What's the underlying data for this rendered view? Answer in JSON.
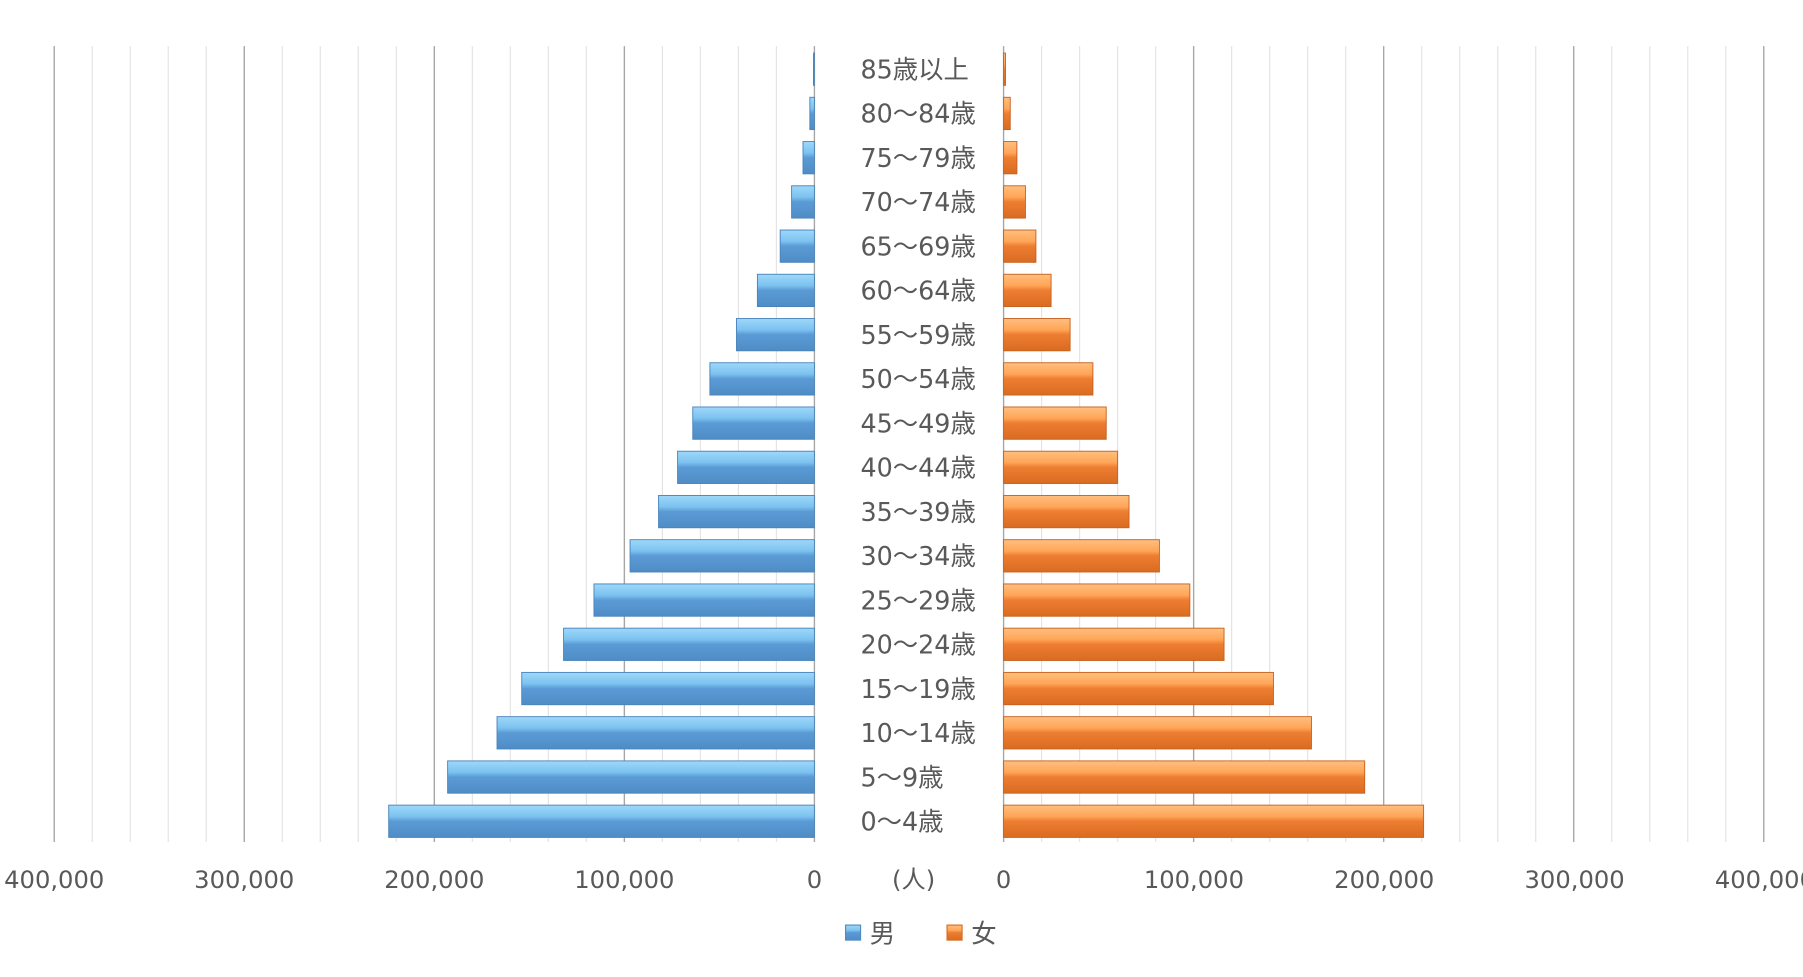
{
  "chart_data": {
    "type": "bar",
    "orientation": "horizontal-population-pyramid",
    "categories": [
      "85歳以上",
      "80～84歳",
      "75～79歳",
      "70～74歳",
      "65～69歳",
      "60～64歳",
      "55～59歳",
      "50～54歳",
      "45～49歳",
      "40～44歳",
      "35～39歳",
      "30～34歳",
      "25～29歳",
      "20～24歳",
      "15～19歳",
      "10～14歳",
      "5～9歳",
      "0～4歳"
    ],
    "series": [
      {
        "name": "男",
        "color": "#5b9bd5",
        "values": [
          500,
          2400,
          6000,
          12000,
          18000,
          30000,
          41000,
          55000,
          64000,
          72000,
          82000,
          97000,
          116000,
          132000,
          154000,
          167000,
          193000,
          224000
        ]
      },
      {
        "name": "女",
        "color": "#ed7d31",
        "values": [
          1000,
          3500,
          7000,
          11500,
          17000,
          25000,
          35000,
          47000,
          54000,
          60000,
          66000,
          82000,
          98000,
          116000,
          142000,
          162000,
          190000,
          221000
        ]
      }
    ],
    "xlim": [
      0,
      400000
    ],
    "ticks": [
      "400,000",
      "300,000",
      "200,000",
      "100,000",
      "0"
    ],
    "ticks_right": [
      "0",
      "100,000",
      "200,000",
      "300,000",
      "400,000"
    ],
    "unit_label": "(人)",
    "grid": true,
    "legend": "bottom"
  }
}
